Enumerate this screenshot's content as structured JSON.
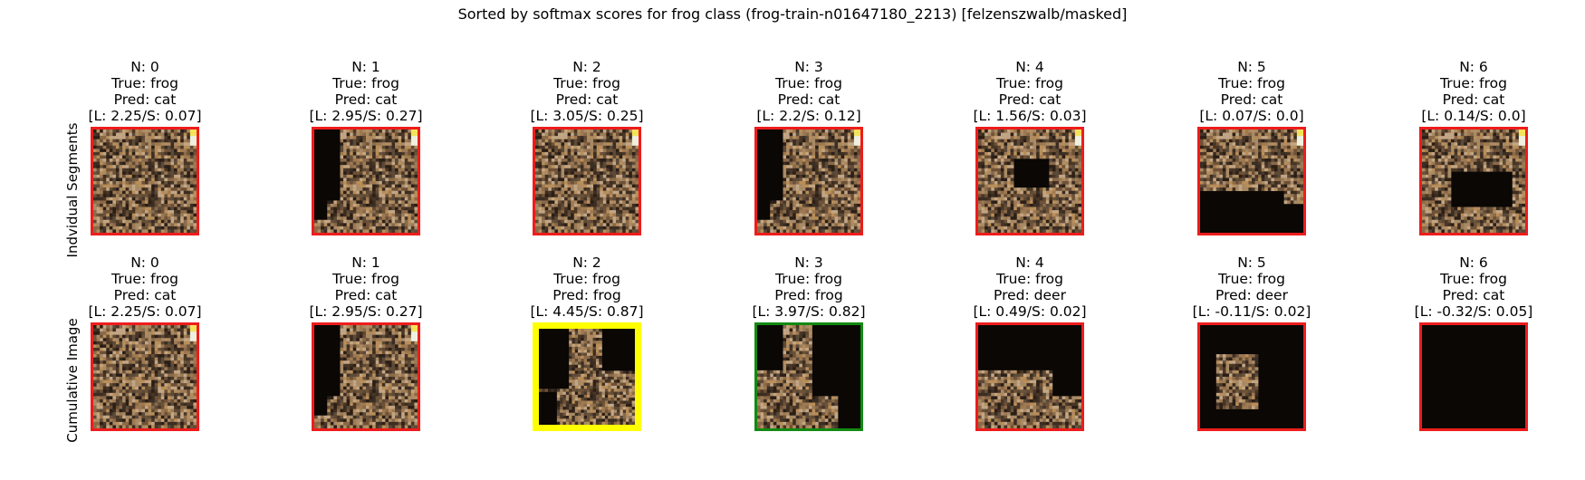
{
  "title": "Sorted by softmax scores for frog class (frog-train-n01647180_2213) [felzenszwalb/masked]",
  "border_colors": {
    "red": "#ee1c1c",
    "yellow": "#ffff00",
    "green": "#138a13"
  },
  "rows": [
    {
      "label": "Indvidual Segments",
      "cells": [
        {
          "n": "N: 0",
          "true": "True: frog",
          "pred": "Pred: cat",
          "ls": "[L: 2.25/S: 0.07]",
          "border": "red",
          "mask": "full"
        },
        {
          "n": "N: 1",
          "true": "True: frog",
          "pred": "Pred: cat",
          "ls": "[L: 2.95/S: 0.27]",
          "border": "red",
          "mask": "left-dark"
        },
        {
          "n": "N: 2",
          "true": "True: frog",
          "pred": "Pred: cat",
          "ls": "[L: 3.05/S: 0.25]",
          "border": "red",
          "mask": "full"
        },
        {
          "n": "N: 3",
          "true": "True: frog",
          "pred": "Pred: cat",
          "ls": "[L: 2.2/S: 0.12]",
          "border": "red",
          "mask": "left-dark"
        },
        {
          "n": "N: 4",
          "true": "True: frog",
          "pred": "Pred: cat",
          "ls": "[L: 1.56/S: 0.03]",
          "border": "red",
          "mask": "center-dark"
        },
        {
          "n": "N: 5",
          "true": "True: frog",
          "pred": "Pred: cat",
          "ls": "[L: 0.07/S: 0.0]",
          "border": "red",
          "mask": "bottom-dark"
        },
        {
          "n": "N: 6",
          "true": "True: frog",
          "pred": "Pred: cat",
          "ls": "[L: 0.14/S: 0.0]",
          "border": "red",
          "mask": "hole"
        }
      ]
    },
    {
      "label": "Cumulative Image",
      "cells": [
        {
          "n": "N: 0",
          "true": "True: frog",
          "pred": "Pred: cat",
          "ls": "[L: 2.25/S: 0.07]",
          "border": "red",
          "mask": "full"
        },
        {
          "n": "N: 1",
          "true": "True: frog",
          "pred": "Pred: cat",
          "ls": "[L: 2.95/S: 0.27]",
          "border": "red",
          "mask": "left-dark"
        },
        {
          "n": "N: 2",
          "true": "True: frog",
          "pred": "Pred: frog",
          "ls": "[L: 4.45/S: 0.87]",
          "border": "yellow",
          "mask": "cum2"
        },
        {
          "n": "N: 3",
          "true": "True: frog",
          "pred": "Pred: frog",
          "ls": "[L: 3.97/S: 0.82]",
          "border": "green",
          "mask": "cum3"
        },
        {
          "n": "N: 4",
          "true": "True: frog",
          "pred": "Pred: deer",
          "ls": "[L: 0.49/S: 0.02]",
          "border": "red",
          "mask": "cum4"
        },
        {
          "n": "N: 5",
          "true": "True: frog",
          "pred": "Pred: deer",
          "ls": "[L: -0.11/S: 0.02]",
          "border": "red",
          "mask": "cum5"
        },
        {
          "n": "N: 6",
          "true": "True: frog",
          "pred": "Pred: cat",
          "ls": "[L: -0.32/S: 0.05]",
          "border": "red",
          "mask": "black"
        }
      ]
    }
  ]
}
